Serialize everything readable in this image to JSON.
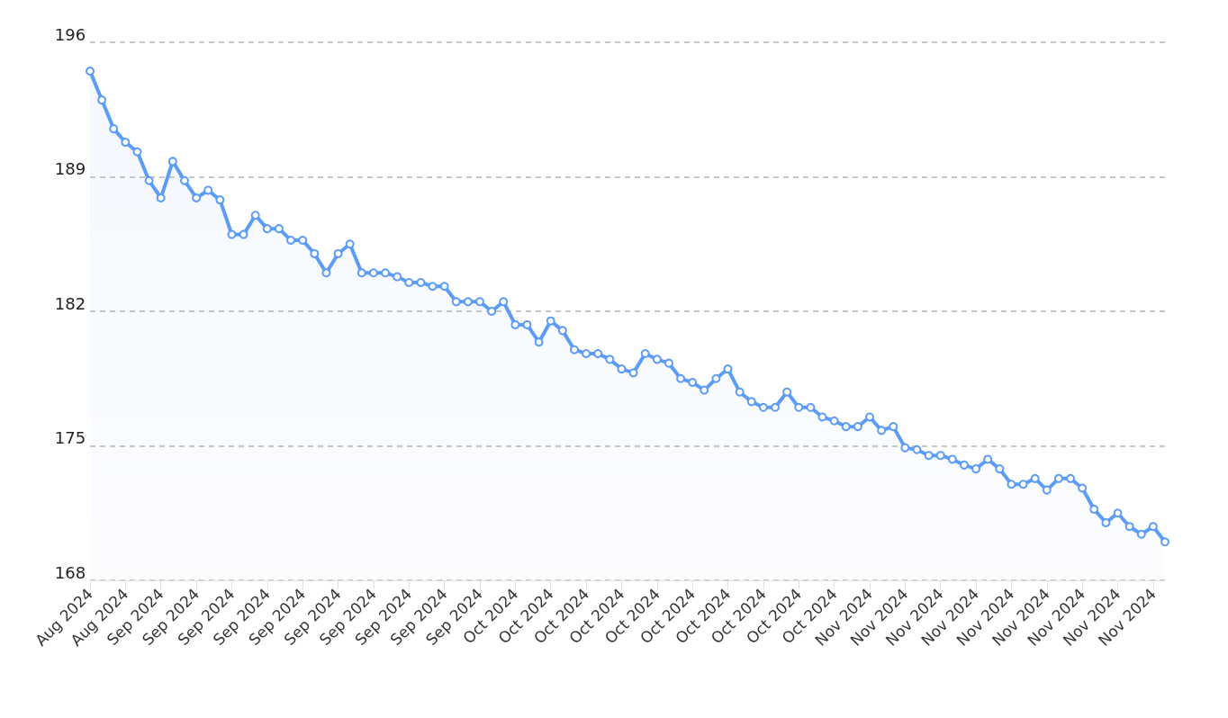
{
  "chart_data": {
    "type": "area",
    "categories": [
      "Aug 2024",
      null,
      null,
      "Aug 2024",
      null,
      null,
      "Sep 2024",
      null,
      null,
      "Sep 2024",
      null,
      null,
      "Sep 2024",
      null,
      null,
      "Sep 2024",
      null,
      null,
      "Sep 2024",
      null,
      null,
      "Sep 2024",
      null,
      null,
      "Sep 2024",
      null,
      null,
      "Sep 2024",
      null,
      null,
      "Sep 2024",
      null,
      null,
      "Sep 2024",
      null,
      null,
      "Oct 2024",
      null,
      null,
      "Oct 2024",
      null,
      null,
      "Oct 2024",
      null,
      null,
      "Oct 2024",
      null,
      null,
      "Oct 2024",
      null,
      null,
      "Oct 2024",
      null,
      null,
      "Oct 2024",
      null,
      null,
      "Oct 2024",
      null,
      null,
      "Oct 2024",
      null,
      null,
      "Oct 2024",
      null,
      null,
      "Nov 2024",
      null,
      null,
      "Nov 2024",
      null,
      null,
      "Nov 2024",
      null,
      null,
      "Nov 2024",
      null,
      null,
      "Nov 2024",
      null,
      null,
      "Nov 2024",
      null,
      null,
      "Nov 2024",
      null,
      null,
      "Nov 2024",
      null,
      null,
      "Nov 2024",
      null
    ],
    "series": [
      {
        "color": "#5b9cf6",
        "values": [
          194.5,
          193.0,
          191.5,
          190.8,
          190.3,
          188.8,
          187.9,
          189.8,
          188.8,
          187.9,
          188.3,
          187.8,
          186.0,
          186.0,
          187.0,
          186.3,
          186.3,
          185.7,
          185.7,
          185.0,
          184.0,
          185.0,
          185.5,
          184.0,
          184.0,
          184.0,
          183.8,
          183.5,
          183.5,
          183.3,
          183.3,
          182.5,
          182.5,
          182.5,
          182.0,
          182.5,
          181.3,
          181.3,
          180.4,
          181.5,
          181.0,
          180.0,
          179.8,
          179.8,
          179.5,
          179.0,
          178.8,
          179.8,
          179.5,
          179.3,
          178.5,
          178.3,
          177.9,
          178.5,
          179.0,
          177.8,
          177.3,
          177.0,
          177.0,
          177.8,
          177.0,
          177.0,
          176.5,
          176.3,
          176.0,
          176.0,
          176.5,
          175.8,
          176.0,
          174.9,
          174.8,
          174.5,
          174.5,
          174.3,
          174.0,
          173.8,
          174.3,
          173.8,
          173.0,
          173.0,
          173.3,
          172.7,
          173.3,
          173.3,
          172.8,
          171.7,
          171.0,
          171.5,
          170.8,
          170.4,
          170.8,
          170.0
        ]
      }
    ],
    "ylim": [
      168,
      196
    ],
    "yticks": [
      168,
      175,
      182,
      189,
      196
    ],
    "grid": "y",
    "marker": "circle",
    "line_style": "solid"
  }
}
